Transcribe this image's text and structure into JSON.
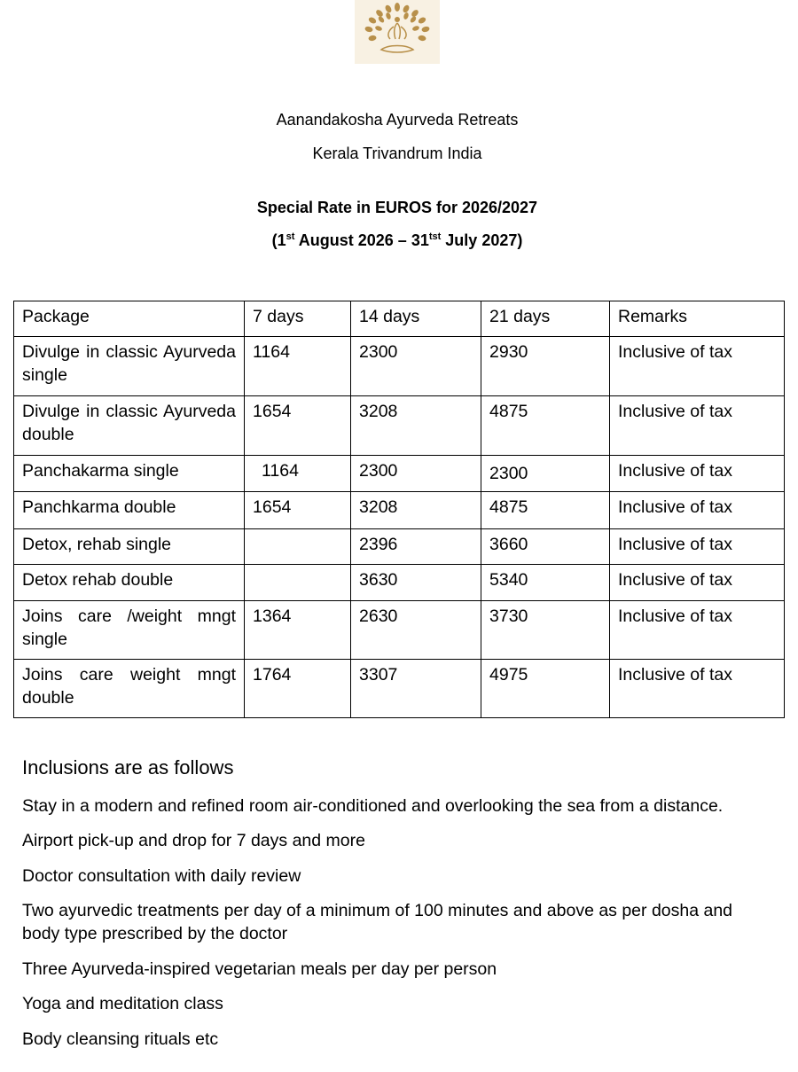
{
  "header": {
    "logo_icon": "meditating-tree-logo",
    "org_name": "Aanandakosha Ayurveda Retreats",
    "location": "Kerala Trivandrum  India",
    "rate_title": "Special Rate in EUROS for 2026/2027",
    "period_open": "(1",
    "period_sup1": "st",
    "period_mid": " August 2026 – 31",
    "period_sup2": "tst",
    "period_close": " July 2027)"
  },
  "table": {
    "columns": [
      "Package",
      "7 days",
      "14 days",
      "21 days",
      "Remarks"
    ],
    "rows": [
      [
        "Divulge in classic Ayurveda single",
        "1164",
        "2300",
        "2930",
        "Inclusive of tax"
      ],
      [
        "Divulge in classic Ayurveda double",
        "1654",
        "3208",
        "4875",
        "Inclusive of tax"
      ],
      [
        "Panchakarma single",
        "1164",
        "2300",
        "2300",
        "Inclusive of tax"
      ],
      [
        "Panchkarma double",
        "1654",
        "3208",
        "4875",
        "Inclusive of tax"
      ],
      [
        "Detox, rehab single",
        "",
        "2396",
        "3660",
        "Inclusive of tax"
      ],
      [
        "Detox rehab double",
        "",
        "3630",
        "5340",
        "Inclusive of tax"
      ],
      [
        "Joins care /weight mngt single",
        "1364",
        "2630",
        "3730",
        "Inclusive of tax"
      ],
      [
        "Joins care weight mngt double",
        "1764",
        "3307",
        "4975",
        "Inclusive of tax"
      ]
    ]
  },
  "inclusions": {
    "heading": "Inclusions are as follows",
    "items": [
      "Stay in a modern and refined room air-conditioned and overlooking the sea from a distance.",
      "Airport pick-up and drop for 7 days and more",
      "Doctor consultation with daily review",
      "Two ayurvedic treatments per day of a minimum of 100 minutes and above as per dosha and body type prescribed by the doctor",
      "Three Ayurveda-inspired  vegetarian meals per day per person",
      "Yoga and meditation class",
      "Body cleansing rituals etc"
    ]
  },
  "colors": {
    "logo_bg": "#f8f1e3",
    "logo_gold": "#b8904a"
  }
}
